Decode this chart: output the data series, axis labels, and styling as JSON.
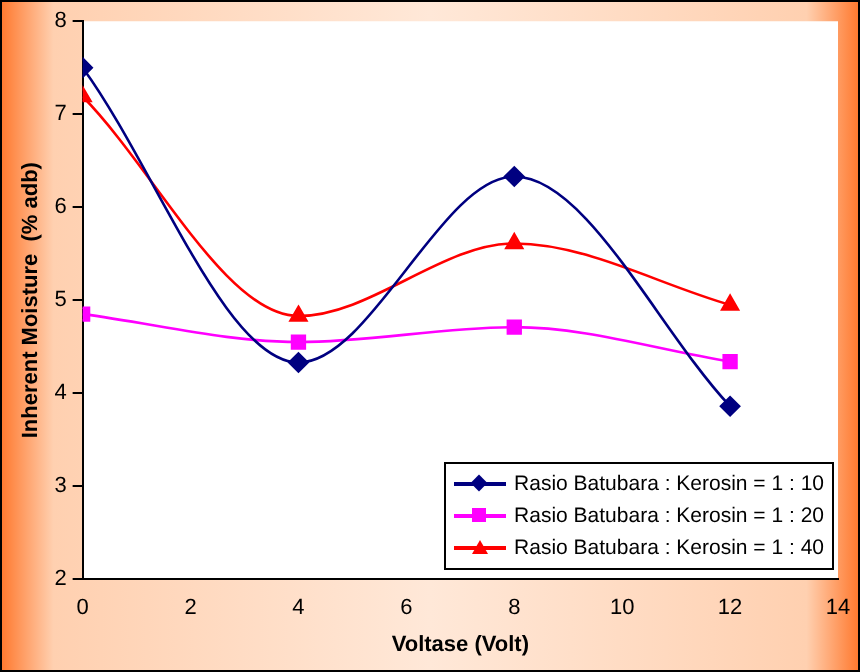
{
  "chart_data": {
    "type": "line",
    "xlabel": "Voltase (Volt)",
    "ylabel": "Inherent Moisture  (% adb)",
    "x": [
      0,
      4,
      8,
      12
    ],
    "series": [
      {
        "name": "Rasio Batubara : Kerosin = 1 : 10",
        "color": "#000080",
        "marker": "diamond",
        "values": [
          7.5,
          4.33,
          6.33,
          3.86
        ]
      },
      {
        "name": "Rasio Batubara : Kerosin = 1 : 20",
        "color": "#ff00ff",
        "marker": "square",
        "values": [
          4.85,
          4.55,
          4.71,
          4.34
        ]
      },
      {
        "name": "Rasio Batubara : Kerosin = 1 : 40",
        "color": "#ff0000",
        "marker": "triangle",
        "values": [
          7.19,
          4.83,
          5.61,
          4.95
        ]
      }
    ],
    "xlim": [
      0,
      14
    ],
    "xticks": [
      0,
      2,
      4,
      6,
      8,
      10,
      12,
      14
    ],
    "ylim": [
      2,
      8
    ],
    "yticks": [
      2,
      3,
      4,
      5,
      6,
      7,
      8
    ],
    "grid": false,
    "legend": "bottom right",
    "line_style": "solid"
  }
}
